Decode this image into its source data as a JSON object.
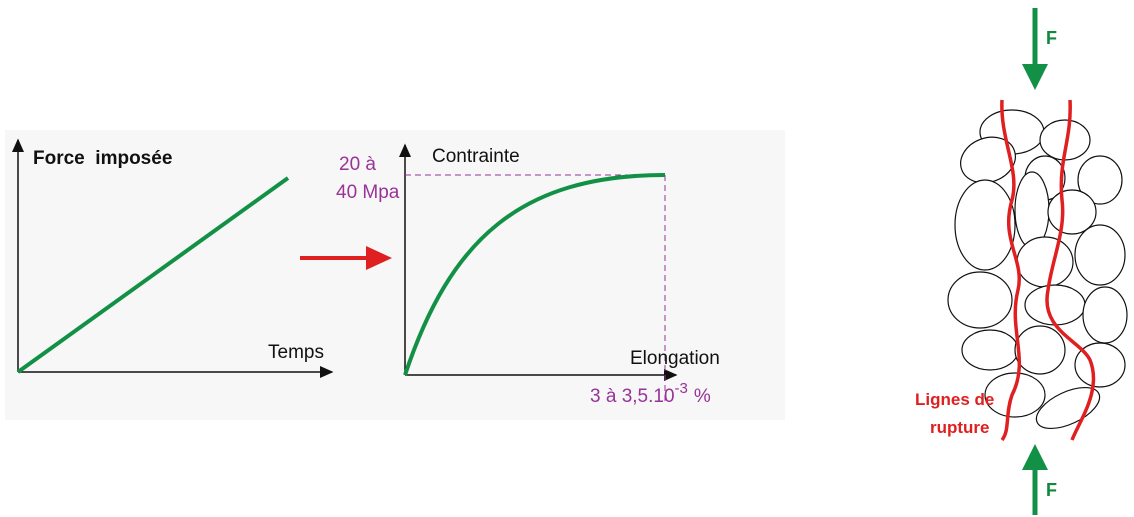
{
  "left_graph": {
    "y_label": "Force  imposée",
    "x_label": "Temps"
  },
  "middle_graph": {
    "y_label": "Contrainte",
    "y_value_line1": "20 à",
    "y_value_line2": "40 Mpa",
    "x_label": "Elongation",
    "x_value": "3 à 3,5.10",
    "x_value_exponent": "-3",
    "x_value_unit": "%"
  },
  "right_figure": {
    "force_top": "F",
    "force_bottom": "F",
    "crack_label_line1": "Lignes de",
    "crack_label_line2": "rupture"
  }
}
